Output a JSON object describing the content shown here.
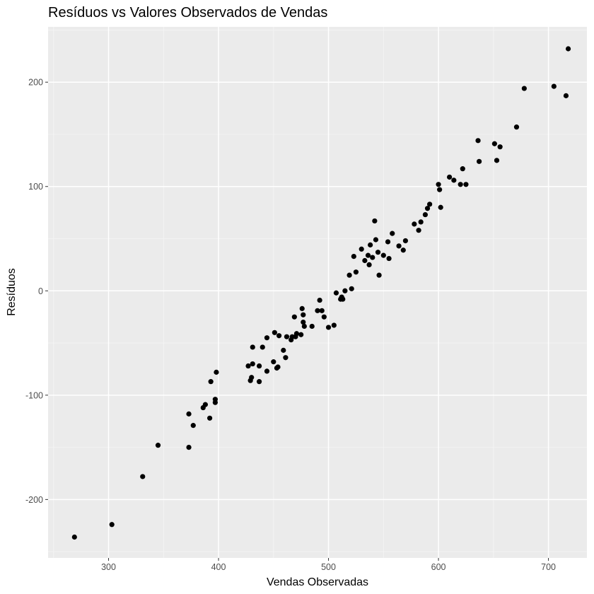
{
  "chart_data": {
    "type": "scatter",
    "title": "Resíduos vs Valores Observados de Vendas",
    "xlabel": "Vendas Observadas",
    "ylabel": "Resíduos",
    "xlim": [
      245,
      735
    ],
    "ylim": [
      -256,
      253
    ],
    "x_ticks": [
      300,
      400,
      500,
      600,
      700
    ],
    "y_ticks": [
      -200,
      -100,
      0,
      100,
      200
    ],
    "x_tick_labels": [
      "300",
      "400",
      "500",
      "600",
      "700"
    ],
    "y_tick_labels": [
      "-200",
      "-100",
      "0",
      "100",
      "200"
    ],
    "grid": true,
    "panel_background": "#ebebeb",
    "gridline_color": "#ffffff",
    "point_color": "#000000",
    "points": [
      [
        269,
        -236
      ],
      [
        303,
        -224
      ],
      [
        331,
        -178
      ],
      [
        345,
        -148
      ],
      [
        373,
        -118
      ],
      [
        373,
        -150
      ],
      [
        377,
        -129
      ],
      [
        386,
        -112
      ],
      [
        388,
        -109
      ],
      [
        392,
        -122
      ],
      [
        393,
        -87
      ],
      [
        397,
        -104
      ],
      [
        397,
        -107
      ],
      [
        398,
        -78
      ],
      [
        427,
        -72
      ],
      [
        429,
        -86
      ],
      [
        430,
        -83
      ],
      [
        431,
        -70
      ],
      [
        431,
        -54
      ],
      [
        437,
        -87
      ],
      [
        437,
        -72
      ],
      [
        440,
        -54
      ],
      [
        444,
        -45
      ],
      [
        444,
        -77
      ],
      [
        450,
        -68
      ],
      [
        451,
        -40
      ],
      [
        453,
        -74
      ],
      [
        454,
        -73
      ],
      [
        455,
        -43
      ],
      [
        459,
        -57
      ],
      [
        461,
        -64
      ],
      [
        462,
        -44
      ],
      [
        466,
        -47
      ],
      [
        467,
        -44
      ],
      [
        469,
        -25
      ],
      [
        470,
        -44
      ],
      [
        471,
        -41
      ],
      [
        475,
        -42
      ],
      [
        476,
        -17
      ],
      [
        477,
        -23
      ],
      [
        477,
        -30
      ],
      [
        478,
        -34
      ],
      [
        485,
        -34
      ],
      [
        490,
        -19
      ],
      [
        492,
        -9
      ],
      [
        494,
        -19
      ],
      [
        496,
        -25
      ],
      [
        500,
        -35
      ],
      [
        505,
        -33
      ],
      [
        507,
        -2
      ],
      [
        511,
        -8
      ],
      [
        512,
        -6
      ],
      [
        513,
        -8
      ],
      [
        515,
        0
      ],
      [
        519,
        15
      ],
      [
        521,
        2
      ],
      [
        523,
        33
      ],
      [
        525,
        18
      ],
      [
        530,
        40
      ],
      [
        533,
        29
      ],
      [
        536,
        34
      ],
      [
        537,
        25
      ],
      [
        538,
        44
      ],
      [
        540,
        32
      ],
      [
        542,
        67
      ],
      [
        543,
        49
      ],
      [
        545,
        37
      ],
      [
        546,
        15
      ],
      [
        550,
        34
      ],
      [
        554,
        47
      ],
      [
        555,
        31
      ],
      [
        558,
        55
      ],
      [
        564,
        43
      ],
      [
        568,
        39
      ],
      [
        570,
        48
      ],
      [
        578,
        64
      ],
      [
        582,
        58
      ],
      [
        584,
        66
      ],
      [
        588,
        73
      ],
      [
        590,
        79
      ],
      [
        592,
        83
      ],
      [
        600,
        102
      ],
      [
        601,
        97
      ],
      [
        602,
        80
      ],
      [
        610,
        109
      ],
      [
        614,
        106
      ],
      [
        620,
        102
      ],
      [
        622,
        117
      ],
      [
        625,
        102
      ],
      [
        636,
        144
      ],
      [
        637,
        124
      ],
      [
        651,
        141
      ],
      [
        653,
        125
      ],
      [
        656,
        138
      ],
      [
        671,
        157
      ],
      [
        678,
        194
      ],
      [
        705,
        196
      ],
      [
        716,
        187
      ],
      [
        718,
        232
      ]
    ]
  }
}
